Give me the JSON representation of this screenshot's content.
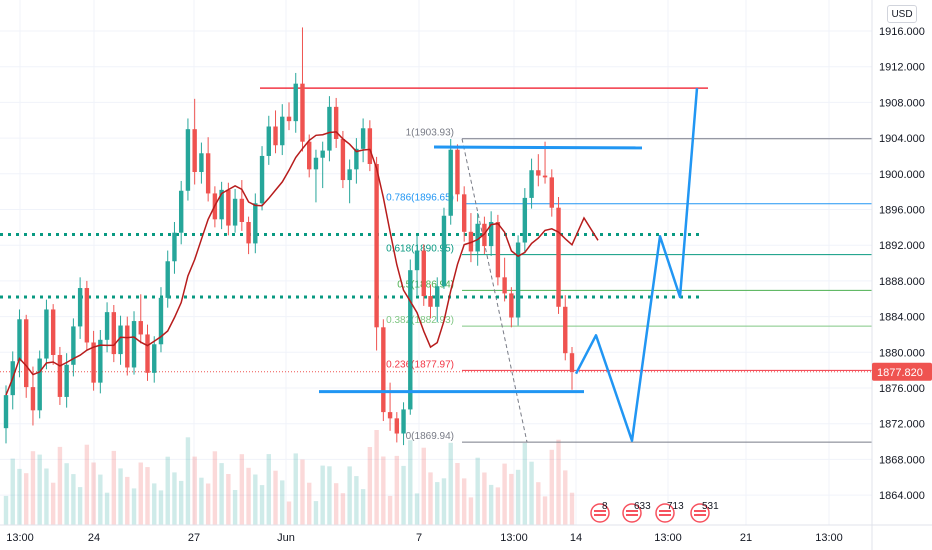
{
  "currency_label": "USD",
  "chart_data": {
    "type": "candlestick",
    "y_axis": {
      "min": 1862,
      "max": 1918,
      "ticks": [
        1916,
        1912,
        1908,
        1904,
        1900,
        1896,
        1892,
        1888,
        1884,
        1880,
        1876,
        1872,
        1868,
        1864
      ]
    },
    "x_axis": {
      "tick_labels": [
        "13:00",
        "24",
        "27",
        "Jun",
        "7",
        "13:00",
        "14",
        "21",
        "13:00",
        "13:00"
      ]
    },
    "last_price": "1877.820",
    "candles": [
      [
        1871.5,
        1876.3,
        1869.8,
        1875.2
      ],
      [
        1875.2,
        1880.1,
        1873.6,
        1879.0
      ],
      [
        1879.0,
        1884.8,
        1877.2,
        1883.7
      ],
      [
        1883.7,
        1884.2,
        1874.9,
        1876.1
      ],
      [
        1876.1,
        1878.4,
        1871.8,
        1873.5
      ],
      [
        1873.5,
        1880.2,
        1872.6,
        1879.3
      ],
      [
        1879.3,
        1885.9,
        1878.1,
        1884.8
      ],
      [
        1884.8,
        1885.4,
        1878.6,
        1879.7
      ],
      [
        1879.7,
        1880.6,
        1874.1,
        1875.0
      ],
      [
        1875.0,
        1879.9,
        1873.8,
        1878.6
      ],
      [
        1878.6,
        1883.8,
        1877.3,
        1882.9
      ],
      [
        1882.9,
        1888.4,
        1881.5,
        1887.2
      ],
      [
        1887.2,
        1888.0,
        1880.2,
        1881.1
      ],
      [
        1881.1,
        1882.4,
        1875.7,
        1876.6
      ],
      [
        1876.6,
        1882.5,
        1875.4,
        1881.4
      ],
      [
        1881.4,
        1885.6,
        1880.0,
        1884.5
      ],
      [
        1884.5,
        1885.3,
        1878.9,
        1879.8
      ],
      [
        1879.8,
        1884.1,
        1878.6,
        1883.0
      ],
      [
        1883.0,
        1884.0,
        1877.4,
        1878.3
      ],
      [
        1878.3,
        1884.6,
        1877.5,
        1883.5
      ],
      [
        1883.5,
        1886.5,
        1881.0,
        1882.0
      ],
      [
        1882.0,
        1883.1,
        1876.8,
        1877.7
      ],
      [
        1877.7,
        1881.8,
        1876.6,
        1880.9
      ],
      [
        1880.9,
        1887.3,
        1880.0,
        1886.1
      ],
      [
        1886.1,
        1891.4,
        1885.0,
        1890.2
      ],
      [
        1890.2,
        1894.6,
        1888.8,
        1893.4
      ],
      [
        1893.4,
        1899.2,
        1892.1,
        1898.1
      ],
      [
        1898.1,
        1906.2,
        1897.0,
        1905.0
      ],
      [
        1905.0,
        1908.4,
        1898.8,
        1900.2
      ],
      [
        1900.2,
        1903.5,
        1898.9,
        1902.3
      ],
      [
        1902.3,
        1904.1,
        1896.9,
        1897.8
      ],
      [
        1897.8,
        1898.6,
        1894.0,
        1894.9
      ],
      [
        1894.9,
        1899.1,
        1893.8,
        1898.2
      ],
      [
        1898.2,
        1899.0,
        1893.1,
        1894.2
      ],
      [
        1894.2,
        1898.3,
        1893.4,
        1897.2
      ],
      [
        1897.2,
        1899.3,
        1893.6,
        1894.6
      ],
      [
        1894.6,
        1895.2,
        1891.0,
        1892.2
      ],
      [
        1892.2,
        1897.8,
        1891.1,
        1896.7
      ],
      [
        1896.7,
        1903.1,
        1895.9,
        1902.0
      ],
      [
        1902.0,
        1906.5,
        1901.0,
        1905.3
      ],
      [
        1905.3,
        1907.1,
        1902.3,
        1903.2
      ],
      [
        1903.2,
        1907.8,
        1902.1,
        1906.4
      ],
      [
        1906.4,
        1908.0,
        1904.9,
        1905.9
      ],
      [
        1905.9,
        1911.3,
        1904.6,
        1910.1
      ],
      [
        1910.1,
        1916.4,
        1902.5,
        1903.6
      ],
      [
        1903.6,
        1904.4,
        1899.6,
        1900.5
      ],
      [
        1900.5,
        1902.7,
        1896.8,
        1901.8
      ],
      [
        1901.8,
        1903.6,
        1898.4,
        1902.6
      ],
      [
        1902.6,
        1908.7,
        1901.4,
        1907.5
      ],
      [
        1907.5,
        1908.5,
        1902.9,
        1903.9
      ],
      [
        1903.9,
        1904.8,
        1898.4,
        1899.3
      ],
      [
        1899.3,
        1901.6,
        1896.7,
        1900.5
      ],
      [
        1900.5,
        1904.0,
        1898.9,
        1902.8
      ],
      [
        1902.8,
        1906.2,
        1901.3,
        1905.1
      ],
      [
        1905.1,
        1906.0,
        1900.3,
        1901.1
      ],
      [
        1901.1,
        1901.9,
        1880.2,
        1882.8
      ],
      [
        1882.8,
        1883.7,
        1872.3,
        1873.3
      ],
      [
        1873.3,
        1876.6,
        1871.2,
        1872.6
      ],
      [
        1872.6,
        1873.3,
        1869.9,
        1870.9
      ],
      [
        1870.9,
        1874.4,
        1869.6,
        1873.6
      ],
      [
        1873.6,
        1890.4,
        1873.0,
        1889.2
      ],
      [
        1889.2,
        1893.1,
        1886.4,
        1891.4
      ],
      [
        1891.4,
        1892.1,
        1885.2,
        1886.3
      ],
      [
        1886.3,
        1887.6,
        1883.8,
        1885.1
      ],
      [
        1885.1,
        1888.4,
        1883.4,
        1887.4
      ],
      [
        1887.4,
        1896.2,
        1887.1,
        1895.3
      ],
      [
        1895.3,
        1903.9,
        1894.3,
        1902.7
      ],
      [
        1902.7,
        1903.3,
        1896.9,
        1897.7
      ],
      [
        1897.7,
        1898.6,
        1892.4,
        1893.5
      ],
      [
        1893.5,
        1895.6,
        1890.1,
        1891.3
      ],
      [
        1891.3,
        1895.6,
        1889.7,
        1894.4
      ],
      [
        1894.4,
        1895.2,
        1891.0,
        1891.9
      ],
      [
        1891.9,
        1895.8,
        1890.8,
        1894.6
      ],
      [
        1894.6,
        1895.4,
        1887.5,
        1888.4
      ],
      [
        1888.4,
        1890.6,
        1885.7,
        1886.6
      ],
      [
        1886.6,
        1887.3,
        1882.8,
        1883.9
      ],
      [
        1883.9,
        1893.1,
        1883.0,
        1892.3
      ],
      [
        1892.3,
        1898.4,
        1891.1,
        1897.3
      ],
      [
        1897.3,
        1901.7,
        1896.1,
        1900.4
      ],
      [
        1900.4,
        1902.2,
        1898.6,
        1899.8
      ],
      [
        1899.8,
        1903.6,
        1898.9,
        1899.6
      ],
      [
        1899.6,
        1900.5,
        1895.2,
        1896.2
      ],
      [
        1896.2,
        1897.4,
        1884.3,
        1885.1
      ],
      [
        1885.1,
        1886.4,
        1879.1,
        1879.9
      ],
      [
        1879.9,
        1880.6,
        1875.8,
        1877.8
      ]
    ],
    "ma_series_color": "#b71c1c",
    "horizontal_levels": [
      {
        "price": 1909.6,
        "color": "#f23645",
        "style": "solid"
      },
      {
        "price": 1893.2,
        "color": "#089981",
        "style": "dotted"
      },
      {
        "price": 1886.2,
        "color": "#089981",
        "style": "dotted"
      }
    ],
    "fib_retracement": {
      "levels": [
        {
          "ratio": "1",
          "price": 1903.93,
          "label": "1(1903.93)",
          "color": "#787b86"
        },
        {
          "ratio": "0.786",
          "price": 1896.65,
          "label": "0.786(1896.65)",
          "color": "#2196f3"
        },
        {
          "ratio": "0.618",
          "price": 1890.95,
          "label": "0.618(1890.95)",
          "color": "#089981"
        },
        {
          "ratio": "0.5",
          "price": 1886.94,
          "label": "0.5(1886.94)",
          "color": "#4caf50"
        },
        {
          "ratio": "0.382",
          "price": 1882.93,
          "label": "0.382(1882.93)",
          "color": "#81c784"
        },
        {
          "ratio": "0.236",
          "price": 1877.97,
          "label": "0.236(1877.97)",
          "color": "#f23645"
        },
        {
          "ratio": "0",
          "price": 1869.94,
          "label": "0(1869.94)",
          "color": "#787b86"
        }
      ]
    },
    "projection_path_prices": [
      1877.6,
      1881.9,
      1870.1,
      1893.0,
      1886.2,
      1909.6
    ],
    "event_badges": [
      "8",
      "633",
      "713",
      "531"
    ]
  }
}
